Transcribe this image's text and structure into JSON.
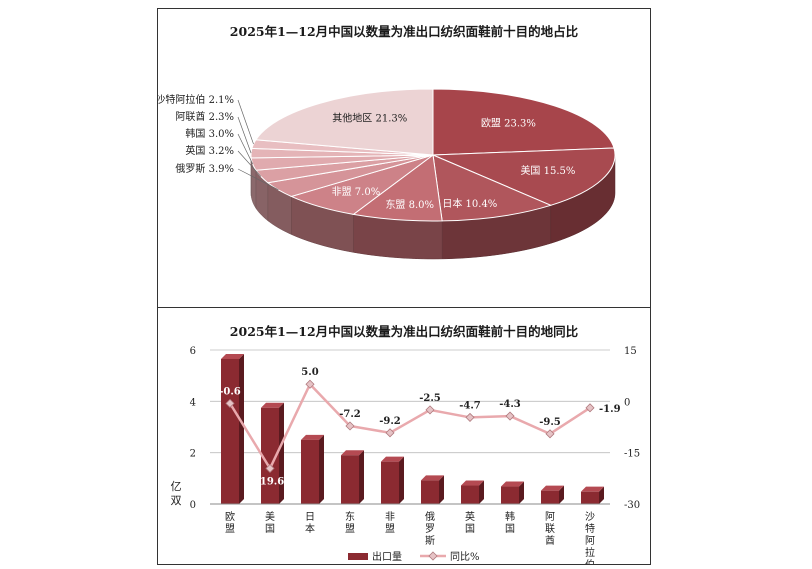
{
  "pie_chart": {
    "title": "2025年1—12月中国以数量为准出口纺织面鞋前十目的地占比",
    "chart_data": {
      "type": "pie",
      "style": "3d",
      "title": "2025年1—12月中国以数量为准出口纺织面鞋前十目的地占比",
      "slices": [
        {
          "label": "欧盟",
          "value": 23.3,
          "display": "欧盟 23.3%"
        },
        {
          "label": "美国",
          "value": 15.5,
          "display": "美国 15.5%"
        },
        {
          "label": "日本",
          "value": 10.4,
          "display": "日本 10.4%"
        },
        {
          "label": "东盟",
          "value": 8.0,
          "display": "东盟 8.0%"
        },
        {
          "label": "非盟",
          "value": 7.0,
          "display": "非盟 7.0%"
        },
        {
          "label": "俄罗斯",
          "value": 3.9,
          "display": "俄罗斯 3.9%"
        },
        {
          "label": "英国",
          "value": 3.2,
          "display": "英国 3.2%"
        },
        {
          "label": "韩国",
          "value": 3.0,
          "display": "韩国 3.0%"
        },
        {
          "label": "阿联酋",
          "value": 2.3,
          "display": "阿联酋 2.3%"
        },
        {
          "label": "沙特阿拉伯",
          "value": 2.1,
          "display": "沙特阿拉伯 2.1%"
        },
        {
          "label": "其他地区",
          "value": 21.3,
          "display": "其他地区 21.3%"
        }
      ],
      "colors": [
        "#a7454b",
        "#a84a50",
        "#b0565c",
        "#c36e74",
        "#cd8288",
        "#d59499",
        "#dba0a4",
        "#e0aaae",
        "#e4b4b7",
        "#e8bec1",
        "#ecd3d4"
      ]
    }
  },
  "bar_chart": {
    "title": "2025年1—12月中国以数量为准出口纺织面鞋前十目的地同比",
    "chart_data": {
      "type": "bar",
      "title": "2025年1—12月中国以数量为准出口纺织面鞋前十目的地同比",
      "categories": [
        "欧盟",
        "美国",
        "日本",
        "东盟",
        "非盟",
        "俄罗斯",
        "英国",
        "韩国",
        "阿联酋",
        "沙特阿拉伯"
      ],
      "ylabel": "亿双",
      "ylim": [
        0,
        6
      ],
      "yticks": [
        "0",
        "2",
        "4",
        "6"
      ],
      "y2lim": [
        -30,
        15
      ],
      "y2ticks": [
        "-30",
        "-15",
        "0",
        "15"
      ],
      "series": [
        {
          "name": "出口量",
          "type": "bar",
          "axis": "left",
          "values": [
            5.65,
            3.75,
            2.5,
            1.9,
            1.65,
            0.92,
            0.72,
            0.68,
            0.52,
            0.48
          ]
        },
        {
          "name": "同比%",
          "type": "line",
          "axis": "right",
          "values": [
            -0.6,
            -19.6,
            5.0,
            -7.2,
            -9.2,
            -2.5,
            -4.7,
            -4.3,
            -9.5,
            -1.9
          ],
          "labels": [
            "-0.6",
            "-19.6",
            "5.0",
            "-7.2",
            "-9.2",
            "-2.5",
            "-4.7",
            "-4.3",
            "-9.5",
            "-1.9"
          ]
        }
      ],
      "colors": {
        "bar": "#8b2a31",
        "bar_side": "#5a1a1f",
        "bar_top": "#b44a52",
        "line": "#e9a9ad",
        "marker": "#e6c3c6"
      }
    }
  }
}
